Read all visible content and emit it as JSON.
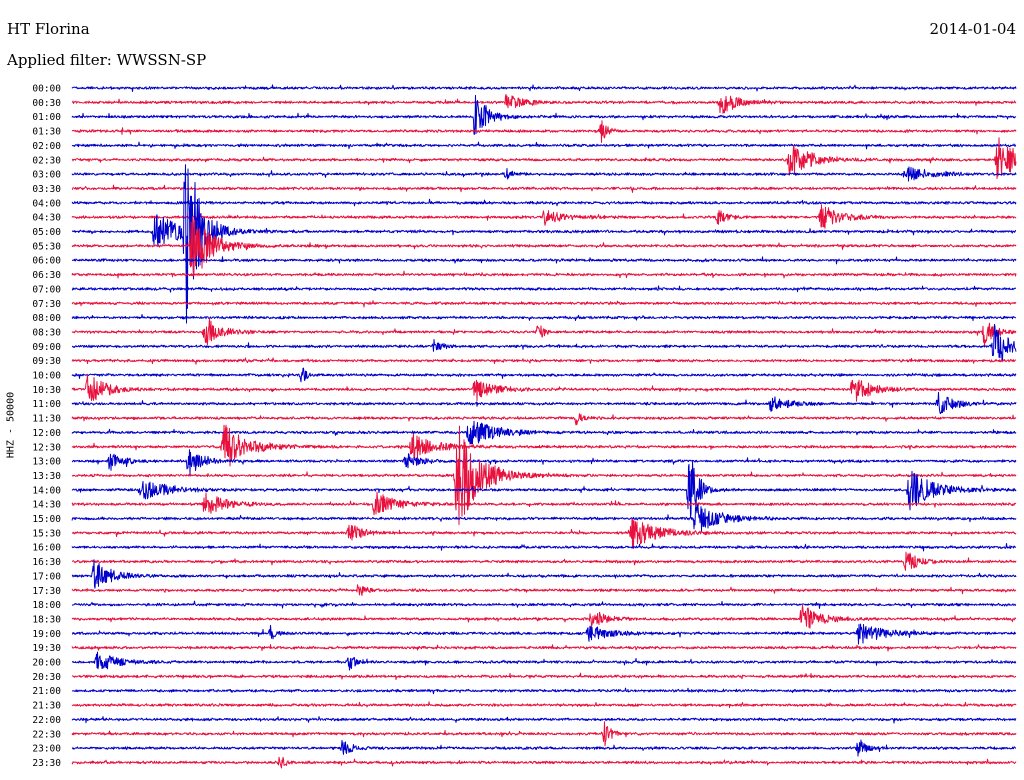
{
  "header": {
    "station": "HT Florina",
    "date": "2014-01-04",
    "filter_label": "Applied filter: WWSSN-SP"
  },
  "side_label": "HHZ - 50000",
  "chart_data": {
    "type": "line",
    "title": "HT Florina",
    "subtitle": "Applied filter: WWSSN-SP",
    "date": "2014-01-04",
    "channel_label": "HHZ - 50000",
    "row_labels": [
      "00:00",
      "00:30",
      "01:00",
      "01:30",
      "02:00",
      "02:30",
      "03:00",
      "03:30",
      "04:00",
      "04:30",
      "05:00",
      "05:30",
      "06:00",
      "06:30",
      "07:00",
      "07:30",
      "08:00",
      "08:30",
      "09:00",
      "09:30",
      "10:00",
      "10:30",
      "11:00",
      "11:30",
      "12:00",
      "12:30",
      "13:00",
      "13:30",
      "14:00",
      "14:30",
      "15:00",
      "15:30",
      "16:00",
      "16:30",
      "17:00",
      "17:30",
      "18:00",
      "18:30",
      "19:00",
      "19:30",
      "20:00",
      "20:30",
      "21:00",
      "21:30",
      "22:00",
      "22:30",
      "23:00",
      "23:30"
    ],
    "row_duration_min": 30,
    "x_range_min": [
      0,
      30
    ],
    "colors": [
      "#0000cc",
      "#e8103c"
    ],
    "grid": false,
    "events": [
      {
        "row": 1,
        "t": 13.8,
        "amp": 1.0,
        "dur": 1.2
      },
      {
        "row": 1,
        "t": 20.6,
        "amp": 1.6,
        "dur": 1.0
      },
      {
        "row": 2,
        "t": 12.8,
        "amp": 3.0,
        "dur": 0.8
      },
      {
        "row": 3,
        "t": 16.8,
        "amp": 1.6,
        "dur": 0.4
      },
      {
        "row": 5,
        "t": 22.8,
        "amp": 2.2,
        "dur": 1.5
      },
      {
        "row": 5,
        "t": 29.4,
        "amp": 3.0,
        "dur": 1.3
      },
      {
        "row": 6,
        "t": 13.8,
        "amp": 1.0,
        "dur": 0.3
      },
      {
        "row": 6,
        "t": 26.5,
        "amp": 1.0,
        "dur": 1.5
      },
      {
        "row": 9,
        "t": 15.0,
        "amp": 1.0,
        "dur": 1.2
      },
      {
        "row": 9,
        "t": 20.5,
        "amp": 1.0,
        "dur": 0.6
      },
      {
        "row": 9,
        "t": 23.8,
        "amp": 1.8,
        "dur": 1.2
      },
      {
        "row": 10,
        "t": 2.6,
        "amp": 2.4,
        "dur": 1.8
      },
      {
        "row": 10,
        "t": 3.6,
        "amp": 12.0,
        "dur": 0.9
      },
      {
        "row": 11,
        "t": 3.8,
        "amp": 5.0,
        "dur": 1.2
      },
      {
        "row": 17,
        "t": 4.2,
        "amp": 2.0,
        "dur": 1.0
      },
      {
        "row": 17,
        "t": 14.8,
        "amp": 1.2,
        "dur": 0.4
      },
      {
        "row": 17,
        "t": 29.0,
        "amp": 2.0,
        "dur": 0.6
      },
      {
        "row": 18,
        "t": 11.5,
        "amp": 0.8,
        "dur": 0.5
      },
      {
        "row": 18,
        "t": 29.3,
        "amp": 3.0,
        "dur": 1.0
      },
      {
        "row": 20,
        "t": 7.3,
        "amp": 1.2,
        "dur": 0.3
      },
      {
        "row": 21,
        "t": 0.5,
        "amp": 2.0,
        "dur": 1.2
      },
      {
        "row": 21,
        "t": 12.8,
        "amp": 1.6,
        "dur": 1.2
      },
      {
        "row": 21,
        "t": 24.8,
        "amp": 1.8,
        "dur": 1.2
      },
      {
        "row": 22,
        "t": 22.2,
        "amp": 1.2,
        "dur": 1.0
      },
      {
        "row": 22,
        "t": 27.5,
        "amp": 1.4,
        "dur": 1.0
      },
      {
        "row": 23,
        "t": 16.0,
        "amp": 1.0,
        "dur": 0.4
      },
      {
        "row": 24,
        "t": 12.6,
        "amp": 2.0,
        "dur": 1.6
      },
      {
        "row": 25,
        "t": 4.8,
        "amp": 3.2,
        "dur": 1.5
      },
      {
        "row": 25,
        "t": 10.8,
        "amp": 1.8,
        "dur": 1.4
      },
      {
        "row": 26,
        "t": 1.2,
        "amp": 1.2,
        "dur": 0.8
      },
      {
        "row": 26,
        "t": 3.7,
        "amp": 2.0,
        "dur": 0.8
      },
      {
        "row": 26,
        "t": 10.6,
        "amp": 1.0,
        "dur": 1.0
      },
      {
        "row": 27,
        "t": 12.2,
        "amp": 8.0,
        "dur": 1.4
      },
      {
        "row": 28,
        "t": 2.2,
        "amp": 1.4,
        "dur": 1.8
      },
      {
        "row": 28,
        "t": 19.6,
        "amp": 7.0,
        "dur": 0.5
      },
      {
        "row": 28,
        "t": 26.6,
        "amp": 2.6,
        "dur": 1.5
      },
      {
        "row": 29,
        "t": 4.2,
        "amp": 1.5,
        "dur": 1.4
      },
      {
        "row": 29,
        "t": 9.6,
        "amp": 1.6,
        "dur": 1.4
      },
      {
        "row": 30,
        "t": 19.8,
        "amp": 2.2,
        "dur": 1.5
      },
      {
        "row": 31,
        "t": 8.8,
        "amp": 1.3,
        "dur": 0.8
      },
      {
        "row": 31,
        "t": 17.8,
        "amp": 2.0,
        "dur": 1.6
      },
      {
        "row": 33,
        "t": 26.5,
        "amp": 1.4,
        "dur": 0.8
      },
      {
        "row": 34,
        "t": 0.7,
        "amp": 2.0,
        "dur": 1.2
      },
      {
        "row": 35,
        "t": 9.1,
        "amp": 1.0,
        "dur": 0.4
      },
      {
        "row": 37,
        "t": 16.5,
        "amp": 1.1,
        "dur": 1.0
      },
      {
        "row": 37,
        "t": 23.2,
        "amp": 1.8,
        "dur": 1.2
      },
      {
        "row": 38,
        "t": 6.3,
        "amp": 1.0,
        "dur": 0.4
      },
      {
        "row": 38,
        "t": 16.4,
        "amp": 1.0,
        "dur": 1.4
      },
      {
        "row": 38,
        "t": 25.0,
        "amp": 1.4,
        "dur": 1.6
      },
      {
        "row": 40,
        "t": 0.8,
        "amp": 1.4,
        "dur": 1.2
      },
      {
        "row": 40,
        "t": 8.8,
        "amp": 1.0,
        "dur": 0.5
      },
      {
        "row": 45,
        "t": 16.9,
        "amp": 2.0,
        "dur": 0.4
      },
      {
        "row": 46,
        "t": 8.6,
        "amp": 1.2,
        "dur": 0.6
      },
      {
        "row": 46,
        "t": 25.0,
        "amp": 1.4,
        "dur": 0.4
      },
      {
        "row": 47,
        "t": 6.6,
        "amp": 1.2,
        "dur": 0.3
      }
    ]
  }
}
